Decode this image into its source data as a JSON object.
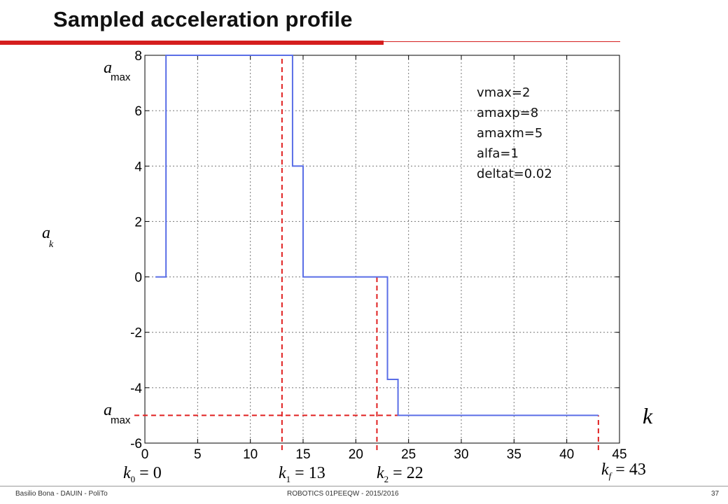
{
  "slide": {
    "title": "Sampled acceleration profile",
    "footer_left": "Basilio Bona - DAUIN - PoliTo",
    "footer_center": "ROBOTICS 01PEEQW - 2015/2016",
    "page_number": "37",
    "accent_color": "#d51e1e"
  },
  "params": [
    "vmax=2",
    "amaxp=8",
    "amaxm=5",
    "alfa=1",
    "deltat=0.02"
  ],
  "labels": {
    "y_top": "amax",
    "y_mid": "ak",
    "y_bottom": "amax",
    "x_axis": "k",
    "k0": "k0 = 0",
    "k1": "k1 = 13",
    "k2": "k2 = 22",
    "kf": "kf = 43"
  },
  "chart_data": {
    "type": "line",
    "xlim": [
      0,
      45
    ],
    "ylim": [
      -6,
      8
    ],
    "x_ticks": [
      0,
      5,
      10,
      15,
      20,
      25,
      30,
      35,
      40,
      45
    ],
    "y_ticks": [
      -6,
      -4,
      -2,
      0,
      2,
      4,
      6,
      8
    ],
    "grid": true,
    "series_color": "#5a6ee6",
    "series": [
      {
        "step": true,
        "points": [
          [
            1,
            0
          ],
          [
            2,
            0
          ],
          [
            2,
            8
          ],
          [
            14,
            8
          ],
          [
            14,
            4
          ],
          [
            15,
            4
          ],
          [
            15,
            0
          ],
          [
            23,
            0
          ],
          [
            23,
            -3.7
          ],
          [
            24,
            -3.7
          ],
          [
            24,
            -5
          ],
          [
            43,
            -5
          ]
        ]
      }
    ],
    "markers_color": "#e02020",
    "vertical_markers": [
      {
        "x": 13,
        "y_from": -6,
        "y_to": 8
      },
      {
        "x": 22,
        "y_from": -6,
        "y_to": 0
      },
      {
        "x": 43,
        "y_from": -6,
        "y_to": -5
      }
    ],
    "horizontal_marker": {
      "y": -5,
      "x_from": -1,
      "x_to": 24
    }
  }
}
